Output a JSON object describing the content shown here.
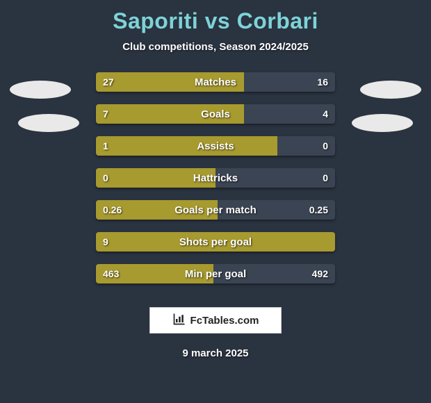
{
  "title": "Saporiti vs Corbari",
  "subtitle": "Club competitions, Season 2024/2025",
  "date": "9 march 2025",
  "logo_text": "FcTables.com",
  "colors": {
    "background": "#2a3340",
    "title": "#7dd3d8",
    "left_bar": "#a79a2f",
    "right_bar": "#3a4452",
    "text": "#ffffff",
    "avatar": "#e9e9e9",
    "logo_bg": "#ffffff"
  },
  "metrics": [
    {
      "label": "Matches",
      "left_val": "27",
      "right_val": "16",
      "left_pct": 62,
      "right_pct": 38
    },
    {
      "label": "Goals",
      "left_val": "7",
      "right_val": "4",
      "left_pct": 62,
      "right_pct": 38
    },
    {
      "label": "Assists",
      "left_val": "1",
      "right_val": "0",
      "left_pct": 76,
      "right_pct": 24
    },
    {
      "label": "Hattricks",
      "left_val": "0",
      "right_val": "0",
      "left_pct": 50,
      "right_pct": 50
    },
    {
      "label": "Goals per match",
      "left_val": "0.26",
      "right_val": "0.25",
      "left_pct": 51,
      "right_pct": 49
    },
    {
      "label": "Shots per goal",
      "left_val": "9",
      "right_val": "",
      "left_pct": 100,
      "right_pct": 0
    },
    {
      "label": "Min per goal",
      "left_val": "463",
      "right_val": "492",
      "left_pct": 49,
      "right_pct": 51
    }
  ]
}
